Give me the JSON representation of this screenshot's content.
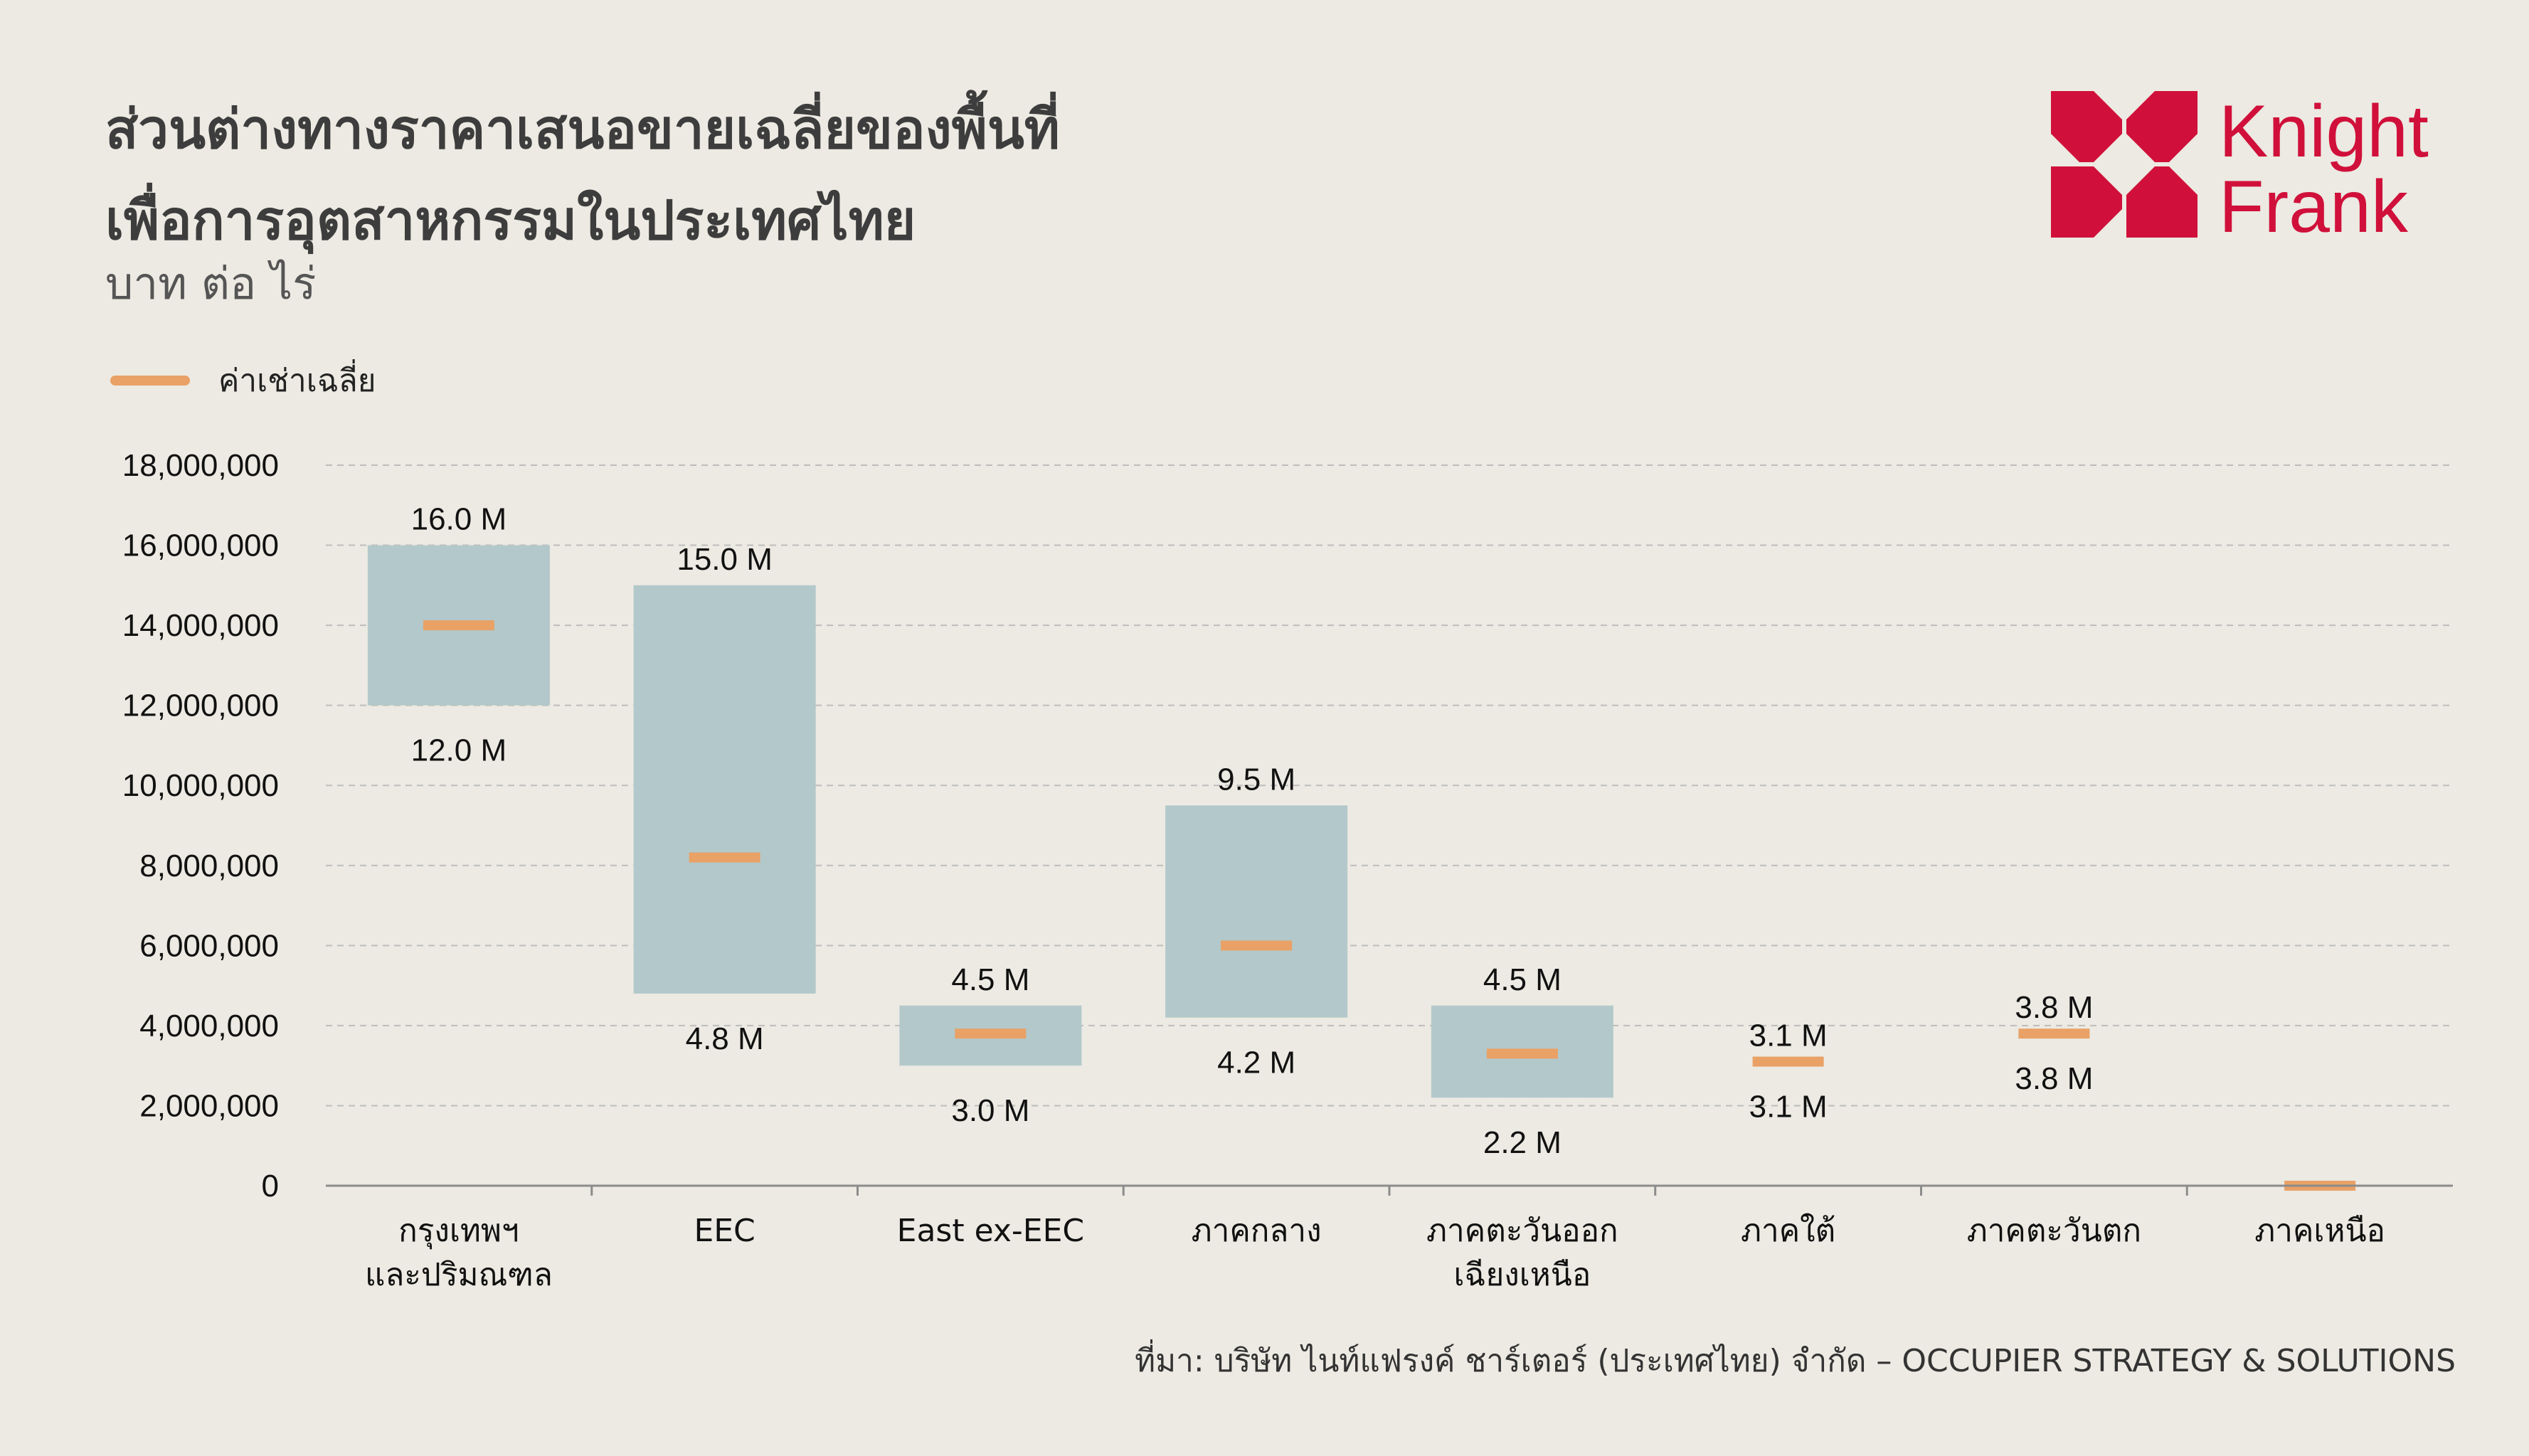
{
  "header": {
    "title_line1": "ส่วนต่างทางราคาเสนอขายเฉลี่ยของพื้นที่",
    "title_line2": "เพื่อการอุตสาหกรรมในประเทศไทย",
    "subtitle": "บาท ต่อ ไร่"
  },
  "logo": {
    "line1": "Knight",
    "line2": "Frank",
    "color": "#d0103a"
  },
  "legend": {
    "label": "ค่าเช่าเฉลี่ย",
    "color": "#e9a166"
  },
  "source": "ที่มา: บริษัท ไนท์แฟรงค์ ชาร์เตอร์ (ประเทศไทย) จำกัด – OCCUPIER STRATEGY & SOLUTIONS",
  "chart_data": {
    "type": "bar",
    "subtype": "floating-range-with-average-marker",
    "categories": [
      [
        "กรุงเทพฯ",
        "และปริมณฑล"
      ],
      [
        "EEC"
      ],
      [
        "East ex-EEC"
      ],
      [
        "ภาคกลาง"
      ],
      [
        "ภาคตะวันออก",
        "เฉียงเหนือ"
      ],
      [
        "ภาคใต้"
      ],
      [
        "ภาคตะวันตก"
      ],
      [
        "ภาคเหนือ"
      ]
    ],
    "series": [
      {
        "name": "max",
        "values": [
          16000000,
          15000000,
          4500000,
          9500000,
          4500000,
          3100000,
          3800000,
          0
        ]
      },
      {
        "name": "min",
        "values": [
          12000000,
          4800000,
          3000000,
          4200000,
          2200000,
          3100000,
          3800000,
          0
        ]
      },
      {
        "name": "ค่าเช่าเฉลี่ย",
        "values": [
          14000000,
          8200000,
          3800000,
          6000000,
          3300000,
          3100000,
          3800000,
          0
        ]
      }
    ],
    "max_labels": [
      "16.0 M",
      "15.0 M",
      "4.5 M",
      "9.5 M",
      "4.5 M",
      "3.1 M",
      "3.8 M",
      ""
    ],
    "min_labels": [
      "12.0 M",
      "4.8 M",
      "3.0 M",
      "4.2 M",
      "2.2 M",
      "3.1 M",
      "3.8 M",
      ""
    ],
    "yticks": [
      "0",
      "2,000,000",
      "4,000,000",
      "6,000,000",
      "8,000,000",
      "10,000,000",
      "12,000,000",
      "14,000,000",
      "16,000,000",
      "18,000,000"
    ],
    "ylim": [
      0,
      18000000
    ],
    "grid": true,
    "colors": {
      "range": "#b3c8ca",
      "average": "#e9a166",
      "grid": "#bdbdbd",
      "axis": "#8c8c8c"
    },
    "legend_position": "top-left"
  }
}
